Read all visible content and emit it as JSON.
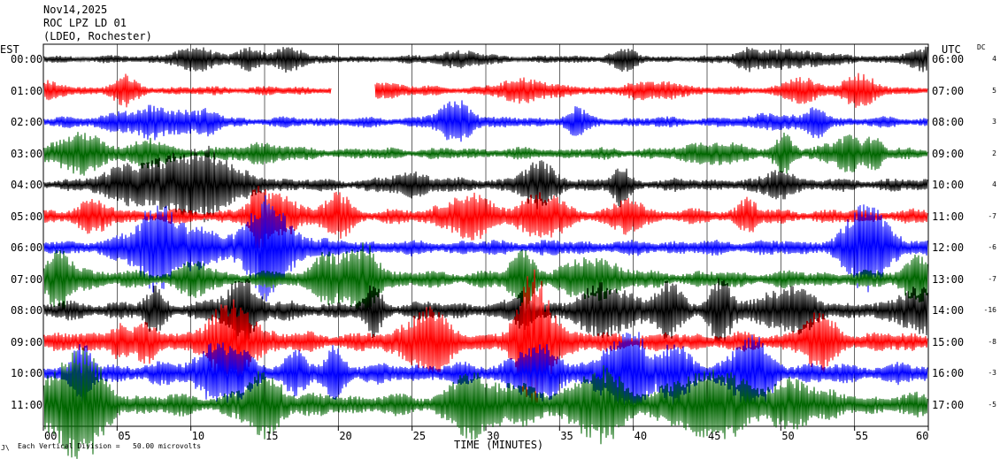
{
  "header": {
    "date": "Nov14,2025",
    "station": "ROC LPZ LD 01",
    "network": "(LDEO, Rochester)"
  },
  "left_zone": "EST",
  "right_zone": "UTC",
  "dc_header": "DC",
  "footer": {
    "scale_note": "Each Vertical Division =   50.00 microvolts",
    "corner_mark": "J\\"
  },
  "chart_data": {
    "type": "line",
    "xlabel": "TIME (MINUTES)",
    "ylabel": "",
    "xlim": [
      0,
      60
    ],
    "x_ticks": [
      "00",
      "05",
      "10",
      "15",
      "20",
      "25",
      "30",
      "35",
      "40",
      "45",
      "50",
      "55",
      "60"
    ],
    "grid": true,
    "colors": [
      "#000000",
      "#ff0000",
      "#0000ff",
      "#006600"
    ],
    "rows": [
      {
        "est": "00:00",
        "utc": "06:00",
        "dc": "4",
        "color": "#000000"
      },
      {
        "est": "01:00",
        "utc": "07:00",
        "dc": "5",
        "color": "#ff0000",
        "gap": [
          19.5,
          22.5
        ]
      },
      {
        "est": "02:00",
        "utc": "08:00",
        "dc": "3",
        "color": "#0000ff"
      },
      {
        "est": "03:00",
        "utc": "09:00",
        "dc": "2",
        "color": "#006600"
      },
      {
        "est": "04:00",
        "utc": "10:00",
        "dc": "4",
        "color": "#000000"
      },
      {
        "est": "05:00",
        "utc": "11:00",
        "dc": "-7",
        "color": "#ff0000"
      },
      {
        "est": "06:00",
        "utc": "12:00",
        "dc": "-6",
        "color": "#0000ff"
      },
      {
        "est": "07:00",
        "utc": "13:00",
        "dc": "-7",
        "color": "#006600"
      },
      {
        "est": "08:00",
        "utc": "14:00",
        "dc": "-16",
        "color": "#000000"
      },
      {
        "est": "09:00",
        "utc": "15:00",
        "dc": "-8",
        "color": "#ff0000"
      },
      {
        "est": "10:00",
        "utc": "16:00",
        "dc": "-3",
        "color": "#0000ff"
      },
      {
        "est": "11:00",
        "utc": "17:00",
        "dc": "-5",
        "color": "#006600"
      }
    ]
  }
}
